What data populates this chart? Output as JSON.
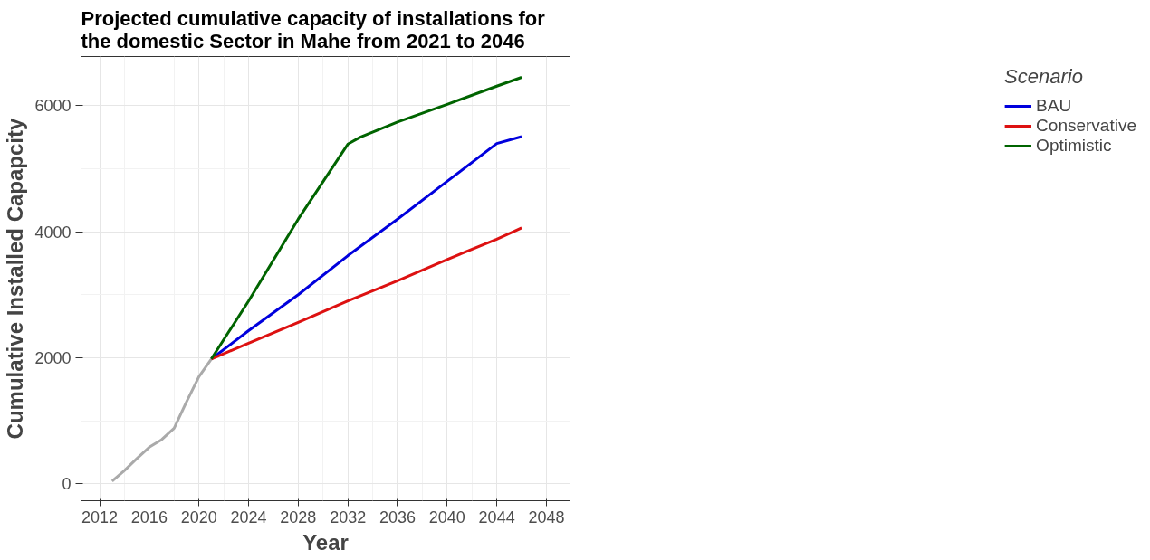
{
  "chart_data": {
    "type": "line",
    "title": "Projected cumulative capacity of installations for the domestic Sector in Mahe from 2021 to 2046",
    "xlabel": "Year",
    "ylabel": "Cumulative Installed Capapcity",
    "legend_title": "Scenario",
    "series": [
      {
        "color": "#aaaaaa",
        "x": [
          2013,
          2014,
          2015,
          2016,
          2017,
          2018,
          2019,
          2020,
          2021
        ],
        "values": [
          40,
          210,
          400,
          580,
          700,
          880,
          1300,
          1700,
          1980
        ]
      },
      {
        "name": "BAU",
        "color": "#0000dd",
        "x": [
          2021,
          2024,
          2028,
          2032,
          2036,
          2040,
          2044,
          2046
        ],
        "values": [
          1980,
          2430,
          3000,
          3620,
          4200,
          4800,
          5400,
          5510
        ]
      },
      {
        "name": "Conservative",
        "color": "#dd1111",
        "x": [
          2021,
          2024,
          2028,
          2032,
          2036,
          2040,
          2044,
          2046
        ],
        "values": [
          1980,
          2230,
          2560,
          2900,
          3220,
          3560,
          3880,
          4060
        ]
      },
      {
        "name": "Optimistic",
        "color": "#006400",
        "x": [
          2021,
          2024,
          2028,
          2032,
          2033,
          2036,
          2040,
          2044,
          2046
        ],
        "values": [
          1980,
          2900,
          4200,
          5390,
          5500,
          5740,
          6020,
          6310,
          6450
        ]
      }
    ],
    "xlim": [
      2010.5,
      2049.9
    ],
    "xticks": [
      2012,
      2016,
      2020,
      2024,
      2028,
      2032,
      2036,
      2040,
      2044,
      2048
    ],
    "ylim": [
      -270,
      6780
    ],
    "yticks": [
      0,
      2000,
      4000,
      6000
    ],
    "grid": true,
    "legend": "right",
    "marker": "none",
    "line_style": "solid"
  }
}
